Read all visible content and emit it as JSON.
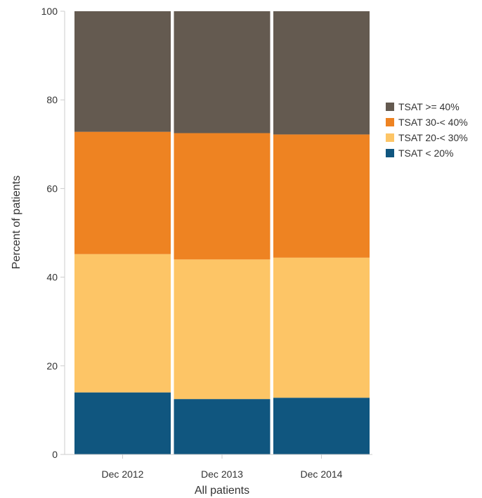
{
  "chart_data": {
    "type": "bar",
    "stacked": true,
    "categories": [
      "Dec 2012",
      "Dec 2013",
      "Dec 2014"
    ],
    "series": [
      {
        "name": "TSAT < 20%",
        "color": "#10567f",
        "values": [
          14.0,
          12.5,
          12.8
        ]
      },
      {
        "name": "TSAT 20-< 30%",
        "color": "#fdc566",
        "values": [
          31.2,
          31.5,
          31.6
        ]
      },
      {
        "name": "TSAT 30-< 40%",
        "color": "#ee8322",
        "values": [
          27.6,
          28.5,
          27.8
        ]
      },
      {
        "name": "TSAT >= 40%",
        "color": "#645a50",
        "values": [
          27.2,
          27.5,
          27.8
        ]
      }
    ],
    "legend_order": [
      "TSAT >= 40%",
      "TSAT 30-< 40%",
      "TSAT 20-< 30%",
      "TSAT < 20%"
    ],
    "ylabel": "Percent of patients",
    "xlabel": "All patients",
    "ylim": [
      0,
      100
    ],
    "yticks": [
      0,
      20,
      40,
      60,
      80,
      100
    ],
    "grid": false,
    "legend_position": "right"
  }
}
